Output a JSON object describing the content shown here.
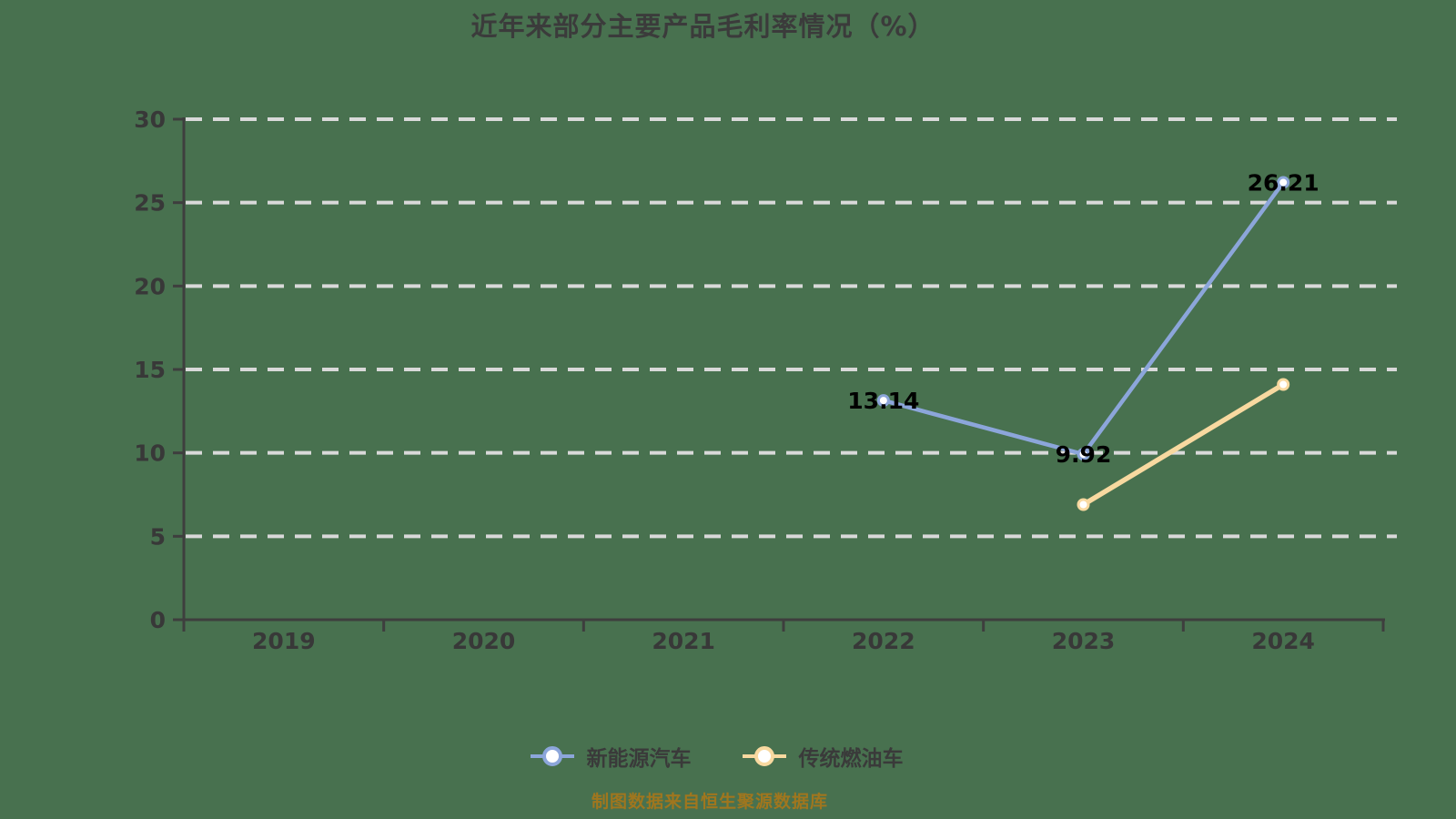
{
  "colors": {
    "background": "#48714f",
    "grid_line": "#d9d9d9",
    "axis_line": "#3e3e3e",
    "axis_tick_label": "#383838",
    "title_text": "#3b3b3b",
    "data_label": "#000000",
    "legend_text": "#3a3a3a",
    "footer_text": "#a0761e",
    "marker_fill": "#ffffff"
  },
  "footer": "制图数据来自恒生聚源数据库",
  "chart_data": {
    "type": "line",
    "title": "近年来部分主要产品毛利率情况（%）",
    "categories": [
      "2019",
      "2020",
      "2021",
      "2022",
      "2023",
      "2024"
    ],
    "series": [
      {
        "name": "新能源汽车",
        "color": "#8ca6da",
        "line_width": 4.5,
        "values": [
          null,
          null,
          null,
          13.14,
          9.92,
          26.21
        ],
        "labels": [
          null,
          null,
          null,
          "13.14",
          "9.92",
          "26.21"
        ]
      },
      {
        "name": "传统燃油车",
        "color": "#f8d9a0",
        "line_width": 5.5,
        "values": [
          null,
          null,
          null,
          null,
          6.9,
          14.1
        ],
        "labels": [
          null,
          null,
          null,
          null,
          null,
          null
        ]
      }
    ],
    "ylim": [
      0,
      30
    ],
    "yticks": [
      0,
      5,
      10,
      15,
      20,
      25,
      30
    ],
    "grid": "horizontal-dashed",
    "legend_position": "bottom"
  }
}
